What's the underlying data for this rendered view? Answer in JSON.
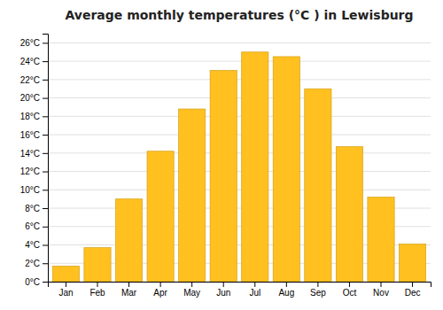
{
  "chart_data": {
    "type": "bar",
    "title": "Average monthly temperatures (°C ) in Lewisburg",
    "categories": [
      "Jan",
      "Feb",
      "Mar",
      "Apr",
      "May",
      "Jun",
      "Jul",
      "Aug",
      "Sep",
      "Oct",
      "Nov",
      "Dec"
    ],
    "values": [
      1.7,
      3.7,
      9.0,
      14.2,
      18.8,
      23.0,
      25.0,
      24.5,
      21.0,
      14.7,
      9.2,
      4.1
    ],
    "color": "#FFC020",
    "ylim": [
      0,
      27
    ],
    "yticks": [
      {
        "value": 0,
        "label": "0°C"
      },
      {
        "value": 2,
        "label": "2°C"
      },
      {
        "value": 4,
        "label": "4°C"
      },
      {
        "value": 6,
        "label": "6°C"
      },
      {
        "value": 8,
        "label": "8°C"
      },
      {
        "value": 10,
        "label": "10°C"
      },
      {
        "value": 12,
        "label": "12°C"
      },
      {
        "value": 14,
        "label": "14°C"
      },
      {
        "value": 16,
        "label": "16°C"
      },
      {
        "value": 18,
        "label": "18°C"
      },
      {
        "value": 20,
        "label": "20°C"
      },
      {
        "value": 22,
        "label": "22°C"
      },
      {
        "value": 24,
        "label": "24°C"
      },
      {
        "value": 26,
        "label": "26°C"
      }
    ],
    "grid": true
  }
}
